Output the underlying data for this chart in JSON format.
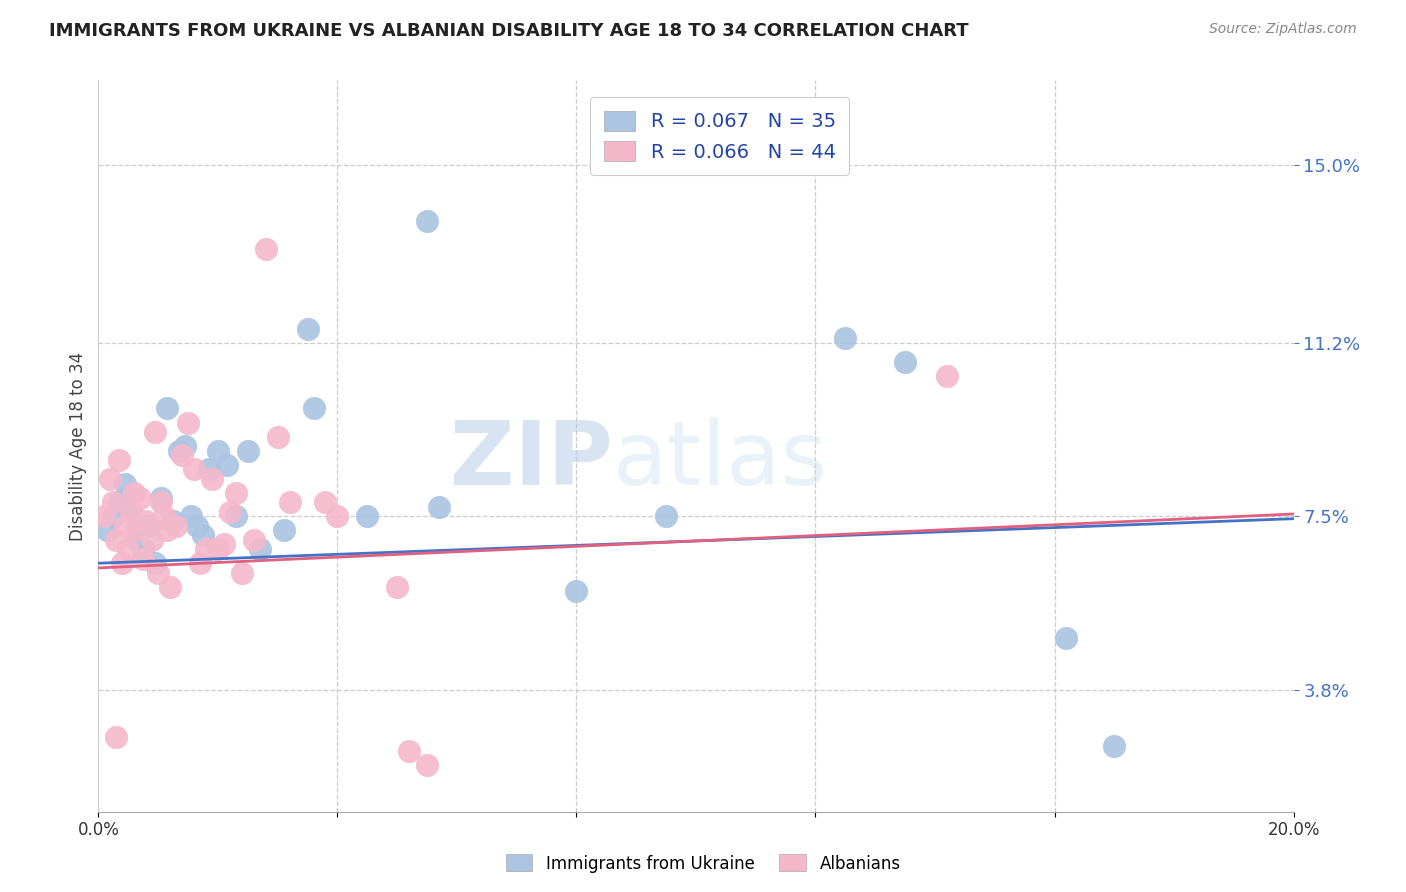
{
  "title": "IMMIGRANTS FROM UKRAINE VS ALBANIAN DISABILITY AGE 18 TO 34 CORRELATION CHART",
  "source": "Source: ZipAtlas.com",
  "ylabel": "Disability Age 18 to 34",
  "ytick_labels": [
    "3.8%",
    "7.5%",
    "11.2%",
    "15.0%"
  ],
  "ytick_values": [
    3.8,
    7.5,
    11.2,
    15.0
  ],
  "xlim": [
    0.0,
    20.0
  ],
  "ylim": [
    1.2,
    16.8
  ],
  "legend_ukraine_r": "R = 0.067",
  "legend_ukraine_n": "N = 35",
  "legend_albanian_r": "R = 0.066",
  "legend_albanian_n": "N = 44",
  "ukraine_color": "#aac4e2",
  "albanian_color": "#f5b8cb",
  "ukraine_line_color": "#4472C4",
  "albanian_line_color": "#e06080",
  "watermark_zip": "ZIP",
  "watermark_atlas": "atlas",
  "ukraine_scatter": [
    [
      0.15,
      7.2
    ],
    [
      0.25,
      7.5
    ],
    [
      0.35,
      7.8
    ],
    [
      0.45,
      8.2
    ],
    [
      0.55,
      7.6
    ],
    [
      0.65,
      7.0
    ],
    [
      0.75,
      6.8
    ],
    [
      0.85,
      7.3
    ],
    [
      0.95,
      6.5
    ],
    [
      1.05,
      7.9
    ],
    [
      1.15,
      9.8
    ],
    [
      1.25,
      7.4
    ],
    [
      1.35,
      8.9
    ],
    [
      1.45,
      9.0
    ],
    [
      1.55,
      7.5
    ],
    [
      1.65,
      7.3
    ],
    [
      1.75,
      7.1
    ],
    [
      1.85,
      8.5
    ],
    [
      2.0,
      8.9
    ],
    [
      2.15,
      8.6
    ],
    [
      2.3,
      7.5
    ],
    [
      2.5,
      8.9
    ],
    [
      2.7,
      6.8
    ],
    [
      3.1,
      7.2
    ],
    [
      3.5,
      11.5
    ],
    [
      3.6,
      9.8
    ],
    [
      4.5,
      7.5
    ],
    [
      5.5,
      13.8
    ],
    [
      5.7,
      7.7
    ],
    [
      8.0,
      5.9
    ],
    [
      9.5,
      7.5
    ],
    [
      12.5,
      11.3
    ],
    [
      13.5,
      10.8
    ],
    [
      16.2,
      4.9
    ],
    [
      17.0,
      2.6
    ]
  ],
  "albanian_scatter": [
    [
      0.1,
      7.5
    ],
    [
      0.2,
      8.3
    ],
    [
      0.25,
      7.8
    ],
    [
      0.3,
      7.0
    ],
    [
      0.35,
      8.7
    ],
    [
      0.4,
      6.5
    ],
    [
      0.45,
      7.3
    ],
    [
      0.5,
      6.8
    ],
    [
      0.55,
      7.6
    ],
    [
      0.6,
      8.0
    ],
    [
      0.65,
      7.2
    ],
    [
      0.7,
      7.9
    ],
    [
      0.75,
      6.6
    ],
    [
      0.8,
      7.4
    ],
    [
      0.9,
      7.0
    ],
    [
      0.95,
      9.3
    ],
    [
      1.0,
      6.3
    ],
    [
      1.05,
      7.8
    ],
    [
      1.1,
      7.5
    ],
    [
      1.15,
      7.2
    ],
    [
      1.2,
      6.0
    ],
    [
      1.3,
      7.3
    ],
    [
      1.4,
      8.8
    ],
    [
      1.5,
      9.5
    ],
    [
      1.6,
      8.5
    ],
    [
      1.7,
      6.5
    ],
    [
      1.8,
      6.8
    ],
    [
      1.9,
      8.3
    ],
    [
      2.0,
      6.8
    ],
    [
      2.1,
      6.9
    ],
    [
      2.2,
      7.6
    ],
    [
      2.3,
      8.0
    ],
    [
      2.4,
      6.3
    ],
    [
      2.6,
      7.0
    ],
    [
      2.8,
      13.2
    ],
    [
      3.0,
      9.2
    ],
    [
      3.2,
      7.8
    ],
    [
      3.8,
      7.8
    ],
    [
      4.0,
      7.5
    ],
    [
      5.0,
      6.0
    ],
    [
      5.2,
      2.5
    ],
    [
      5.5,
      2.2
    ],
    [
      14.2,
      10.5
    ],
    [
      0.3,
      2.8
    ]
  ]
}
